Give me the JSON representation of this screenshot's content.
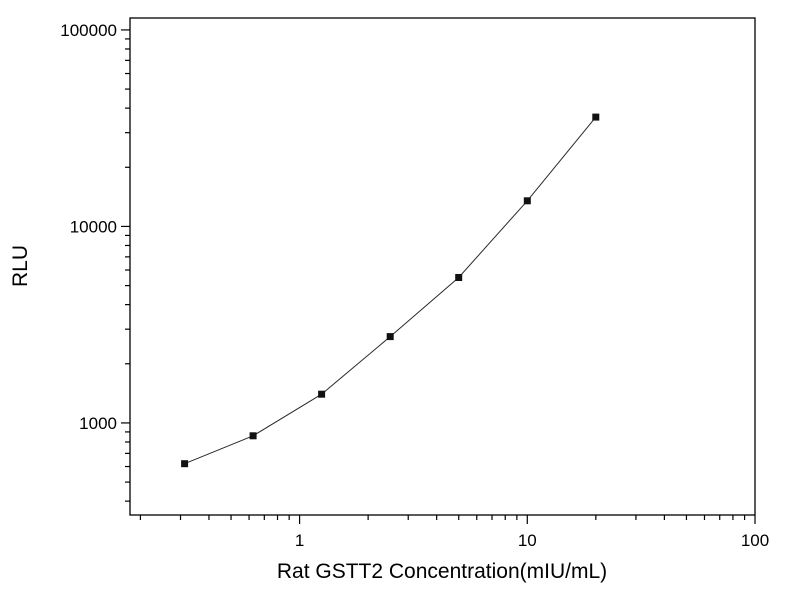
{
  "chart_data": {
    "type": "line",
    "title": "",
    "xlabel": "Rat GSTT2 Concentration(mIU/mL)",
    "ylabel": "RLU",
    "x": [
      0.3125,
      0.625,
      1.25,
      2.5,
      5,
      10,
      20
    ],
    "y": [
      620,
      860,
      1400,
      2750,
      5500,
      13500,
      36000
    ],
    "xscale": "log",
    "yscale": "log",
    "xlim": [
      0.18,
      100
    ],
    "ylim": [
      340,
      115000
    ],
    "x_major_ticks": [
      1,
      10,
      100
    ],
    "y_major_ticks": [
      1000,
      10000,
      100000
    ],
    "grid": false,
    "legend_position": "none",
    "marker": "square",
    "marker_size": 7,
    "marker_color": "#111111",
    "line_color": "#2a2a2a",
    "axis_color": "#000000",
    "background_color": "#ffffff"
  }
}
